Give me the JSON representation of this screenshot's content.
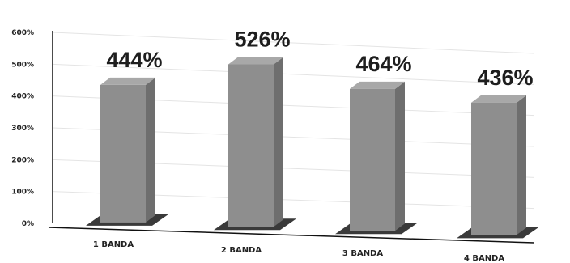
{
  "chart_data": {
    "type": "bar",
    "categories": [
      "1 BANDA",
      "2 BANDA",
      "3 BANDA",
      "4 BANDA"
    ],
    "values": [
      444,
      526,
      464,
      436
    ],
    "data_labels": [
      "444%",
      "526%",
      "464%",
      "436%"
    ],
    "yticks": [
      "0%",
      "100%",
      "200%",
      "300%",
      "400%",
      "500%",
      "600%"
    ],
    "ylim": [
      0,
      600
    ],
    "grid": true,
    "legend": "none",
    "bar_color": "#8e8e8e",
    "title": "",
    "xlabel": "",
    "ylabel": ""
  }
}
